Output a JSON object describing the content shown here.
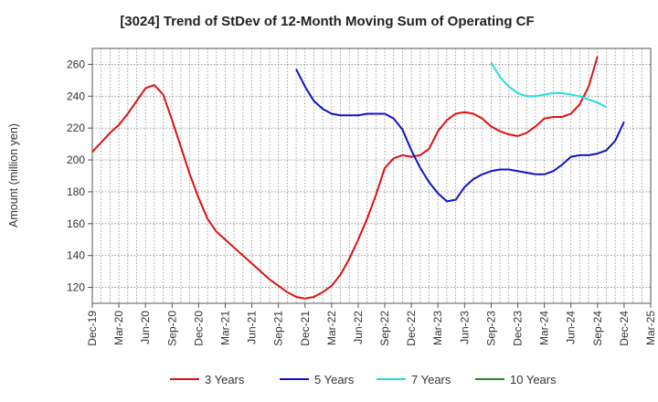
{
  "chart_data": {
    "type": "line",
    "title": "[3024]  Trend of StDev of 12-Month Moving Sum of Operating CF",
    "xlabel": "",
    "ylabel": "Amount (million yen)",
    "ylim": [
      110,
      270
    ],
    "yticks": [
      120,
      140,
      160,
      180,
      200,
      220,
      240,
      260
    ],
    "x_ticks": [
      "Dec-19",
      "Mar-20",
      "Jun-20",
      "Sep-20",
      "Dec-20",
      "Mar-21",
      "Jun-21",
      "Sep-21",
      "Dec-21",
      "Mar-22",
      "Jun-22",
      "Sep-22",
      "Dec-22",
      "Mar-23",
      "Jun-23",
      "Sep-23",
      "Dec-23",
      "Mar-24",
      "Jun-24",
      "Sep-24",
      "Dec-24",
      "Mar-25"
    ],
    "grid": true,
    "legend_position": "bottom",
    "series": [
      {
        "name": "3 Years",
        "color": "#dd1111",
        "start_month": "Dec-19",
        "values": [
          205,
          211,
          217,
          222,
          229,
          237,
          245,
          247,
          241,
          225,
          208,
          191,
          176,
          163,
          155,
          150,
          145,
          140,
          135,
          130,
          125,
          121,
          117,
          114,
          113,
          114,
          117,
          121,
          128,
          138,
          150,
          163,
          178,
          195,
          201,
          203,
          202,
          203,
          207,
          218,
          225,
          229,
          230,
          229,
          226,
          221,
          218,
          216,
          215,
          217,
          221,
          226,
          227,
          227,
          229,
          235,
          246,
          265
        ]
      },
      {
        "name": "5 Years",
        "color": "#1111cc",
        "start_month": "Nov-21",
        "values": [
          257,
          246,
          237,
          232,
          229,
          228,
          228,
          228,
          229,
          229,
          229,
          226,
          219,
          206,
          195,
          186,
          179,
          174,
          175,
          183,
          188,
          191,
          193,
          194,
          194,
          193,
          192,
          191,
          191,
          193,
          197,
          202,
          203,
          203,
          204,
          206,
          212,
          224
        ]
      },
      {
        "name": "7 Years",
        "color": "#22dddd",
        "start_month": "Sep-23",
        "values": [
          261,
          252,
          246,
          242,
          240,
          240,
          241,
          242,
          242,
          241,
          240,
          238,
          236,
          233
        ]
      },
      {
        "name": "10 Years",
        "color": "#228822",
        "start_month": "",
        "values": []
      }
    ]
  }
}
